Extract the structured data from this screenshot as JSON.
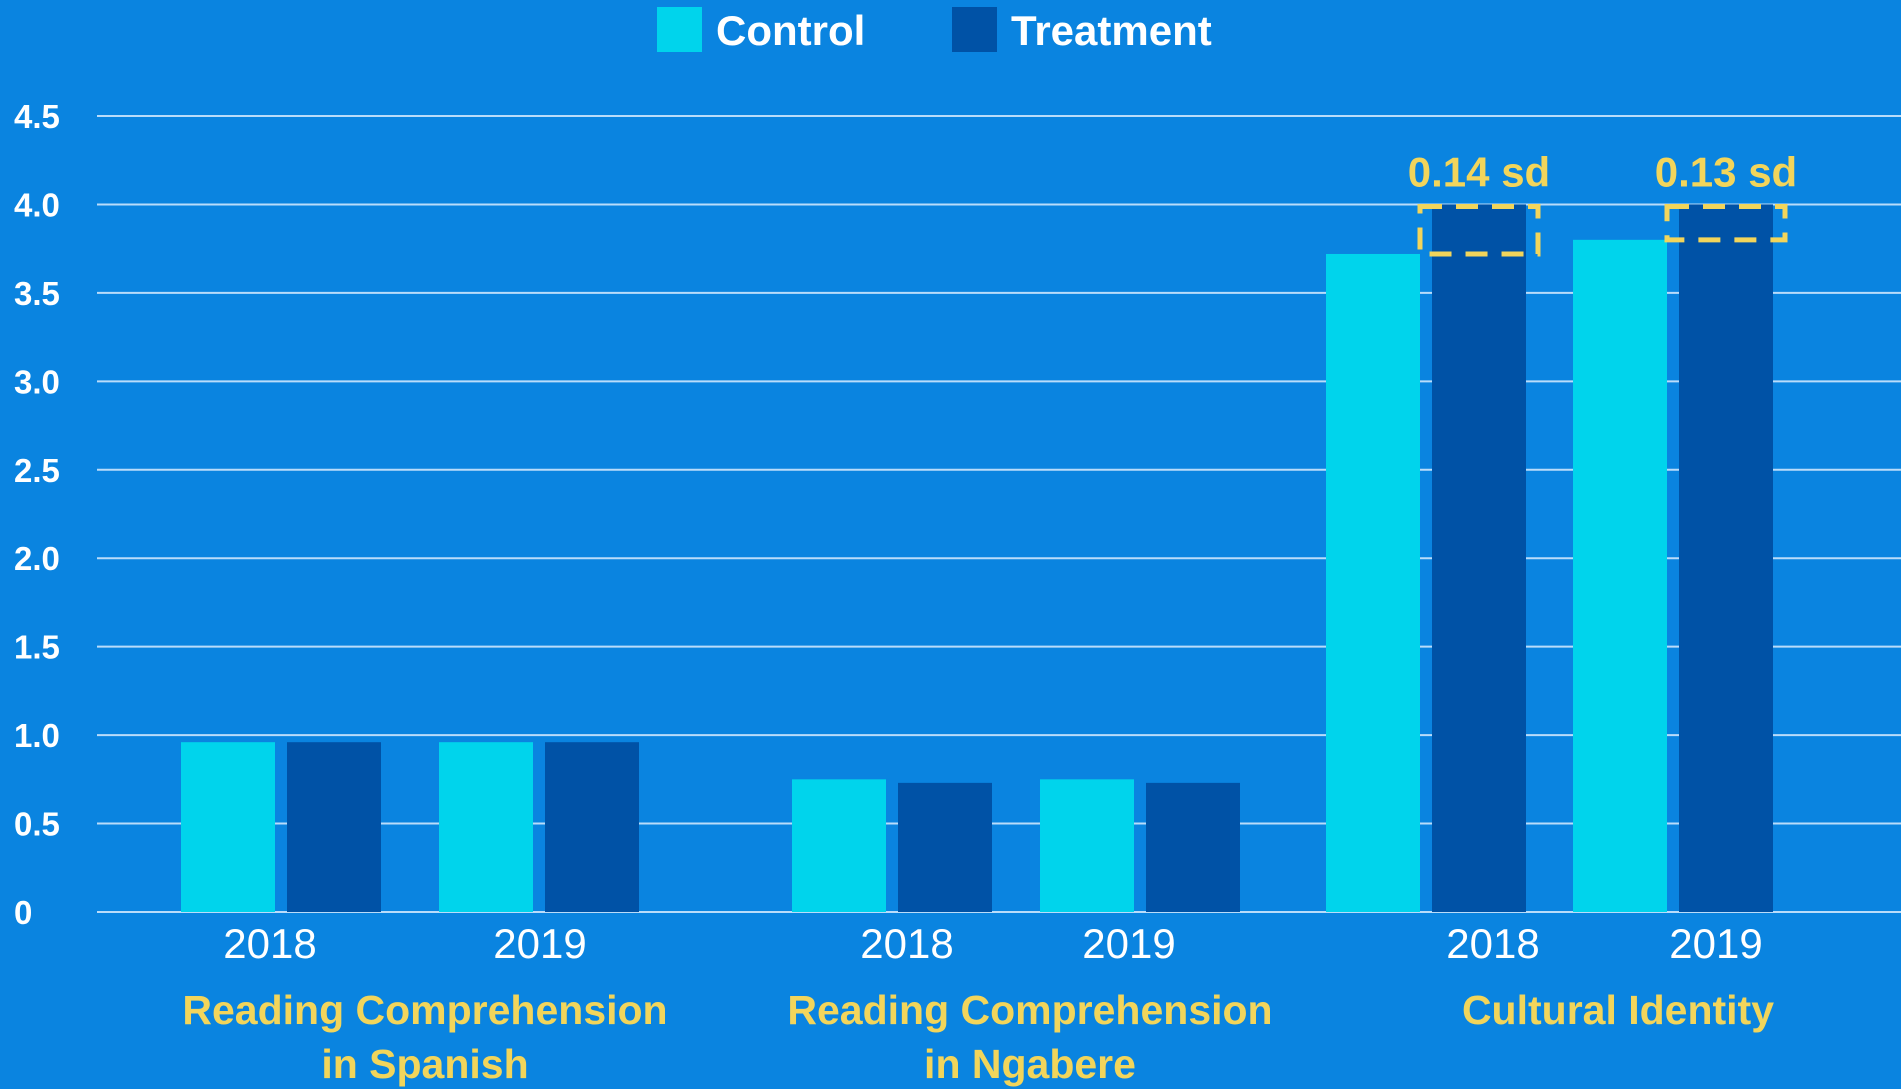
{
  "chart_data": {
    "type": "bar",
    "title": "",
    "xlabel": "",
    "ylabel": "",
    "ylim": [
      0,
      4.5
    ],
    "yticks": [
      "0",
      "0.5",
      "1.0",
      "1.5",
      "2.0",
      "2.5",
      "3.0",
      "3.5",
      "4.0",
      "4.5"
    ],
    "grid": true,
    "legend_position": "top-center",
    "groups": [
      {
        "label_lines": [
          "Reading Comprehension",
          "in Spanish"
        ],
        "years": [
          "2018",
          "2019"
        ]
      },
      {
        "label_lines": [
          "Reading Comprehension",
          "in Ngabere"
        ],
        "years": [
          "2018",
          "2019"
        ]
      },
      {
        "label_lines": [
          "Cultural Identity"
        ],
        "years": [
          "2018",
          "2019"
        ]
      }
    ],
    "series": [
      {
        "name": "Control",
        "color": "#00d4ec",
        "values": [
          0.96,
          0.96,
          0.75,
          0.75,
          3.72,
          3.8
        ]
      },
      {
        "name": "Treatment",
        "color": "#0052a6",
        "values": [
          0.96,
          0.96,
          0.73,
          0.73,
          4.0,
          4.0
        ]
      }
    ],
    "annotations": [
      {
        "index": 4,
        "text": "0.14 sd",
        "from": 3.72,
        "to": 4.0
      },
      {
        "index": 5,
        "text": "0.13 sd",
        "from": 3.8,
        "to": 4.0
      }
    ],
    "colors": {
      "background": "#0a84e0",
      "grid": "#d9ecff",
      "label_accent": "#f2d55b"
    }
  }
}
